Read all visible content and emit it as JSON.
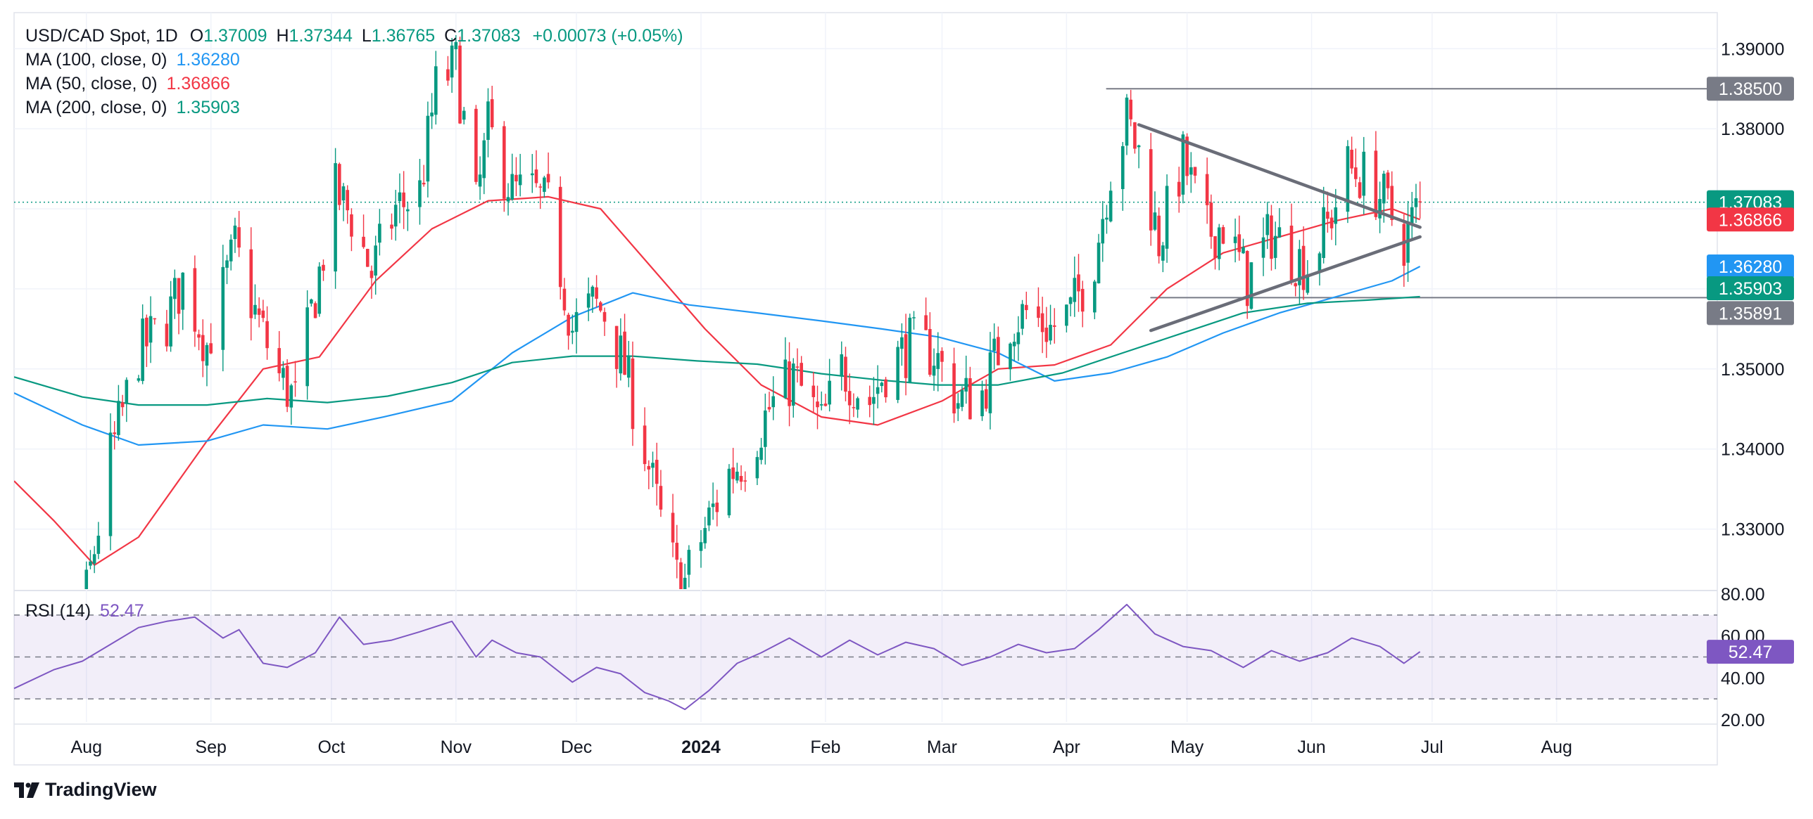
{
  "legend": {
    "symbol": "USD/CAD Spot, 1D",
    "o_label": "O",
    "o": "1.37009",
    "h_label": "H",
    "h": "1.37344",
    "l_label": "L",
    "l": "1.36765",
    "c_label": "C",
    "c": "1.37083",
    "change": "+0.00073 (+0.05%)",
    "ma100_label": "MA (100, close, 0)",
    "ma100": "1.36280",
    "ma50_label": "MA (50, close, 0)",
    "ma50": "1.36866",
    "ma200_label": "MA (200, close, 0)",
    "ma200": "1.35903"
  },
  "rsi_legend": {
    "label": "RSI (14)",
    "value": "52.47"
  },
  "brand": "TradingView",
  "colors": {
    "up": "#089981",
    "down": "#f23645",
    "ma50": "#f23645",
    "ma100": "#2196f3",
    "ma200": "#089981",
    "rsi": "#7e57c2",
    "price_label": "#089981",
    "level_label": "#787b86"
  },
  "chart_data": [
    {
      "type": "candlestick",
      "title": "USD/CAD Spot, 1D",
      "x_ticks": [
        "Aug",
        "Sep",
        "Oct",
        "Nov",
        "Dec",
        "2024",
        "Feb",
        "Mar",
        "Apr",
        "May",
        "Jun",
        "Jul",
        "Aug"
      ],
      "y_ticks": [
        "1.39000",
        "1.38000",
        "1.37000",
        "1.36000",
        "1.35000",
        "1.34000",
        "1.33000"
      ],
      "ylim": [
        1.3225,
        1.3945
      ],
      "price_labels": [
        {
          "name": "Resistance 1.38500",
          "text": "1.38500",
          "value": 1.385,
          "color": "#787b86"
        },
        {
          "name": "Close",
          "text": "1.37083",
          "value": 1.37083,
          "color": "#089981"
        },
        {
          "name": "MA (50)",
          "text": "1.36866",
          "value": 1.36866,
          "color": "#f23645"
        },
        {
          "name": "MA (100)",
          "text": "1.36280",
          "value": 1.3628,
          "color": "#2196f3"
        },
        {
          "name": "MA (200)",
          "text": "1.35903",
          "value": 1.35903,
          "color": "#089981"
        },
        {
          "name": "Support 1.35891",
          "text": "1.35891",
          "value": 1.35891,
          "color": "#787b86"
        }
      ],
      "close_path": [
        [
          "2023-07-14",
          1.3135
        ],
        [
          "2023-07-31",
          1.319
        ],
        [
          "2023-08-07",
          1.339
        ],
        [
          "2023-08-14",
          1.352
        ],
        [
          "2023-08-21",
          1.356
        ],
        [
          "2023-08-25",
          1.361
        ],
        [
          "2023-08-31",
          1.353
        ],
        [
          "2023-09-07",
          1.365
        ],
        [
          "2023-09-12",
          1.357
        ],
        [
          "2023-09-18",
          1.349
        ],
        [
          "2023-09-22",
          1.346
        ],
        [
          "2023-09-26",
          1.357
        ],
        [
          "2023-10-02",
          1.372
        ],
        [
          "2023-10-06",
          1.369
        ],
        [
          "2023-10-11",
          1.362
        ],
        [
          "2023-10-17",
          1.37
        ],
        [
          "2023-10-23",
          1.372
        ],
        [
          "2023-10-27",
          1.385
        ],
        [
          "2023-11-01",
          1.388
        ],
        [
          "2023-11-06",
          1.37
        ],
        [
          "2023-11-09",
          1.38
        ],
        [
          "2023-11-15",
          1.372
        ],
        [
          "2023-11-20",
          1.372
        ],
        [
          "2023-11-24",
          1.37
        ],
        [
          "2023-11-30",
          1.355
        ],
        [
          "2023-12-05",
          1.358
        ],
        [
          "2023-12-08",
          1.357
        ],
        [
          "2023-12-13",
          1.35
        ],
        [
          "2023-12-18",
          1.34
        ],
        [
          "2023-12-22",
          1.331
        ],
        [
          "2023-12-27",
          1.322
        ],
        [
          "2024-01-02",
          1.33
        ],
        [
          "2024-01-08",
          1.337
        ],
        [
          "2024-01-12",
          1.339
        ],
        [
          "2024-01-18",
          1.345
        ],
        [
          "2024-01-24",
          1.349
        ],
        [
          "2024-01-31",
          1.343
        ],
        [
          "2024-02-05",
          1.35
        ],
        [
          "2024-02-12",
          1.346
        ],
        [
          "2024-02-16",
          1.35
        ],
        [
          "2024-02-22",
          1.353
        ],
        [
          "2024-02-28",
          1.352
        ],
        [
          "2024-03-05",
          1.346
        ],
        [
          "2024-03-11",
          1.347
        ],
        [
          "2024-03-18",
          1.356
        ],
        [
          "2024-03-22",
          1.357
        ],
        [
          "2024-03-28",
          1.355
        ],
        [
          "2024-04-02",
          1.357
        ],
        [
          "2024-04-08",
          1.364
        ],
        [
          "2024-04-12",
          1.375
        ],
        [
          "2024-04-16",
          1.381
        ],
        [
          "2024-04-19",
          1.377
        ],
        [
          "2024-04-24",
          1.366
        ],
        [
          "2024-04-30",
          1.376
        ],
        [
          "2024-05-06",
          1.367
        ],
        [
          "2024-05-10",
          1.368
        ],
        [
          "2024-05-16",
          1.361
        ],
        [
          "2024-05-22",
          1.367
        ],
        [
          "2024-05-28",
          1.364
        ],
        [
          "2024-05-31",
          1.363
        ],
        [
          "2024-06-05",
          1.368
        ],
        [
          "2024-06-10",
          1.375
        ],
        [
          "2024-06-14",
          1.374
        ],
        [
          "2024-06-19",
          1.371
        ],
        [
          "2024-06-24",
          1.366
        ],
        [
          "2024-06-28",
          1.37083
        ]
      ],
      "series": [
        {
          "name": "MA (50, close, 0)",
          "color": "#f23645",
          "points": [
            [
              "2023-07-14",
              1.336
            ],
            [
              "2023-07-24",
              1.331
            ],
            [
              "2023-08-03",
              1.3255
            ],
            [
              "2023-08-14",
              1.329
            ],
            [
              "2023-08-31",
              1.341
            ],
            [
              "2023-09-14",
              1.35
            ],
            [
              "2023-09-28",
              1.3515
            ],
            [
              "2023-10-12",
              1.361
            ],
            [
              "2023-10-26",
              1.3675
            ],
            [
              "2023-11-09",
              1.371
            ],
            [
              "2023-11-24",
              1.3715
            ],
            [
              "2023-12-07",
              1.37
            ],
            [
              "2023-12-20",
              1.3625
            ],
            [
              "2024-01-02",
              1.355
            ],
            [
              "2024-01-16",
              1.348
            ],
            [
              "2024-01-31",
              1.344
            ],
            [
              "2024-02-14",
              1.343
            ],
            [
              "2024-03-01",
              1.346
            ],
            [
              "2024-03-15",
              1.35
            ],
            [
              "2024-03-29",
              1.3505
            ],
            [
              "2024-04-12",
              1.353
            ],
            [
              "2024-04-26",
              1.36
            ],
            [
              "2024-05-10",
              1.3645
            ],
            [
              "2024-05-24",
              1.3665
            ],
            [
              "2024-06-07",
              1.3685
            ],
            [
              "2024-06-21",
              1.37
            ],
            [
              "2024-06-28",
              1.36866
            ]
          ]
        },
        {
          "name": "MA (100, close, 0)",
          "color": "#2196f3",
          "points": [
            [
              "2023-07-14",
              1.347
            ],
            [
              "2023-07-31",
              1.343
            ],
            [
              "2023-08-14",
              1.3405
            ],
            [
              "2023-08-31",
              1.341
            ],
            [
              "2023-09-14",
              1.343
            ],
            [
              "2023-09-30",
              1.3425
            ],
            [
              "2023-10-14",
              1.344
            ],
            [
              "2023-10-31",
              1.346
            ],
            [
              "2023-11-15",
              1.352
            ],
            [
              "2023-11-30",
              1.3565
            ],
            [
              "2023-12-15",
              1.3595
            ],
            [
              "2023-12-29",
              1.358
            ],
            [
              "2024-01-15",
              1.357
            ],
            [
              "2024-01-31",
              1.356
            ],
            [
              "2024-02-15",
              1.355
            ],
            [
              "2024-02-29",
              1.354
            ],
            [
              "2024-03-15",
              1.352
            ],
            [
              "2024-03-29",
              1.3485
            ],
            [
              "2024-04-12",
              1.3495
            ],
            [
              "2024-04-26",
              1.3515
            ],
            [
              "2024-05-10",
              1.3545
            ],
            [
              "2024-05-24",
              1.357
            ],
            [
              "2024-06-07",
              1.359
            ],
            [
              "2024-06-21",
              1.361
            ],
            [
              "2024-06-28",
              1.3628
            ]
          ]
        },
        {
          "name": "MA (200, close, 0)",
          "color": "#089981",
          "points": [
            [
              "2023-07-14",
              1.349
            ],
            [
              "2023-07-31",
              1.3465
            ],
            [
              "2023-08-14",
              1.3455
            ],
            [
              "2023-08-31",
              1.3455
            ],
            [
              "2023-09-15",
              1.3463
            ],
            [
              "2023-09-30",
              1.3458
            ],
            [
              "2023-10-15",
              1.3466
            ],
            [
              "2023-10-31",
              1.3483
            ],
            [
              "2023-11-15",
              1.3508
            ],
            [
              "2023-11-30",
              1.3516
            ],
            [
              "2023-12-15",
              1.3516
            ],
            [
              "2023-12-31",
              1.351
            ],
            [
              "2024-01-15",
              1.3506
            ],
            [
              "2024-01-31",
              1.3494
            ],
            [
              "2024-02-15",
              1.3486
            ],
            [
              "2024-02-29",
              1.348
            ],
            [
              "2024-03-15",
              1.348
            ],
            [
              "2024-03-31",
              1.3495
            ],
            [
              "2024-04-15",
              1.352
            ],
            [
              "2024-04-30",
              1.3545
            ],
            [
              "2024-05-15",
              1.357
            ],
            [
              "2024-05-31",
              1.3582
            ],
            [
              "2024-06-15",
              1.3586
            ],
            [
              "2024-06-28",
              1.35903
            ]
          ]
        }
      ],
      "trendlines": [
        {
          "name": "upper",
          "points": [
            [
              "2024-04-19",
              1.3805
            ],
            [
              "2024-06-28",
              1.3677
            ]
          ]
        },
        {
          "name": "lower",
          "points": [
            [
              "2024-04-22",
              1.3548
            ],
            [
              "2024-06-28",
              1.3665
            ]
          ]
        },
        {
          "name": "resistance",
          "points": [
            [
              "2024-04-11",
              1.385
            ],
            [
              "2024-09-10",
              1.385
            ]
          ]
        },
        {
          "name": "support",
          "points": [
            [
              "2024-04-22",
              1.35891
            ],
            [
              "2024-09-10",
              1.35891
            ]
          ]
        }
      ]
    },
    {
      "type": "line",
      "title": "RSI (14)",
      "y_ticks": [
        "80.00",
        "60.00",
        "40.00",
        "20.00"
      ],
      "ylim": [
        19,
        81
      ],
      "band": [
        30,
        70
      ],
      "midline": 50,
      "value_label": "52.47",
      "series": [
        {
          "name": "RSI (14)",
          "color": "#7e57c2",
          "points": [
            [
              "2023-07-14",
              35
            ],
            [
              "2023-07-24",
              44
            ],
            [
              "2023-07-31",
              48
            ],
            [
              "2023-08-07",
              56
            ],
            [
              "2023-08-14",
              64
            ],
            [
              "2023-08-21",
              67
            ],
            [
              "2023-08-28",
              69
            ],
            [
              "2023-09-04",
              59
            ],
            [
              "2023-09-08",
              63
            ],
            [
              "2023-09-14",
              47
            ],
            [
              "2023-09-20",
              45
            ],
            [
              "2023-09-27",
              52
            ],
            [
              "2023-10-03",
              69
            ],
            [
              "2023-10-09",
              56
            ],
            [
              "2023-10-16",
              58
            ],
            [
              "2023-10-23",
              62
            ],
            [
              "2023-10-31",
              67
            ],
            [
              "2023-11-06",
              50
            ],
            [
              "2023-11-10",
              58
            ],
            [
              "2023-11-16",
              52
            ],
            [
              "2023-11-22",
              50
            ],
            [
              "2023-11-30",
              38
            ],
            [
              "2023-12-06",
              45
            ],
            [
              "2023-12-12",
              42
            ],
            [
              "2023-12-18",
              33
            ],
            [
              "2023-12-24",
              29
            ],
            [
              "2023-12-28",
              25
            ],
            [
              "2024-01-03",
              34
            ],
            [
              "2024-01-10",
              47
            ],
            [
              "2024-01-16",
              52
            ],
            [
              "2024-01-23",
              59
            ],
            [
              "2024-01-31",
              50
            ],
            [
              "2024-02-07",
              58
            ],
            [
              "2024-02-14",
              51
            ],
            [
              "2024-02-21",
              57
            ],
            [
              "2024-02-28",
              54
            ],
            [
              "2024-03-06",
              46
            ],
            [
              "2024-03-13",
              50
            ],
            [
              "2024-03-20",
              56
            ],
            [
              "2024-03-27",
              52
            ],
            [
              "2024-04-03",
              54
            ],
            [
              "2024-04-09",
              63
            ],
            [
              "2024-04-16",
              75
            ],
            [
              "2024-04-23",
              61
            ],
            [
              "2024-04-30",
              55
            ],
            [
              "2024-05-07",
              53
            ],
            [
              "2024-05-15",
              45
            ],
            [
              "2024-05-22",
              53
            ],
            [
              "2024-05-29",
              48
            ],
            [
              "2024-06-05",
              52
            ],
            [
              "2024-06-11",
              59
            ],
            [
              "2024-06-18",
              55
            ],
            [
              "2024-06-24",
              47
            ],
            [
              "2024-06-28",
              52.47
            ]
          ]
        }
      ]
    }
  ]
}
